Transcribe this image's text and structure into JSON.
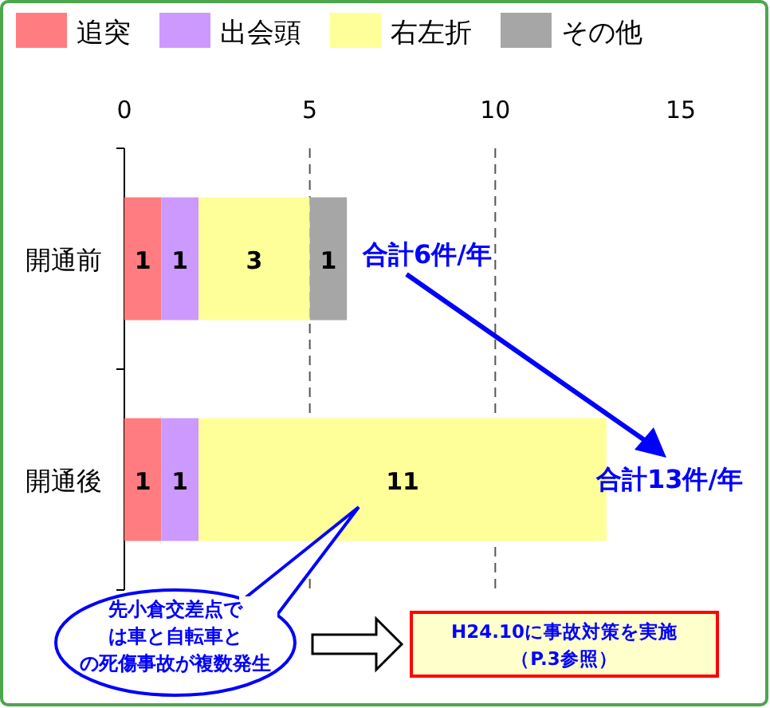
{
  "chart_data": {
    "type": "bar",
    "orientation": "horizontal",
    "stacked": true,
    "categories": [
      "開通前",
      "開通後"
    ],
    "series": [
      {
        "name": "追突",
        "color": "#ff7c80",
        "values": [
          1,
          1
        ]
      },
      {
        "name": "出会頭",
        "color": "#cc99ff",
        "values": [
          1,
          1
        ]
      },
      {
        "name": "右左折",
        "color": "#ffff99",
        "values": [
          3,
          11
        ]
      },
      {
        "name": "その他",
        "color": "#a6a6a6",
        "values": [
          1,
          null
        ]
      }
    ],
    "xlim": [
      0,
      15
    ],
    "xticks": [
      0,
      5,
      10,
      15
    ],
    "grid": "x",
    "legend": "top",
    "data_labels": true,
    "totals": [
      "合計6件/年",
      "合計13件/年"
    ],
    "annotations": [
      "先小倉交差点では車と自転車との死傷事故が複数発生",
      "H24.10に事故対策を実施（P.3参照）"
    ]
  }
}
